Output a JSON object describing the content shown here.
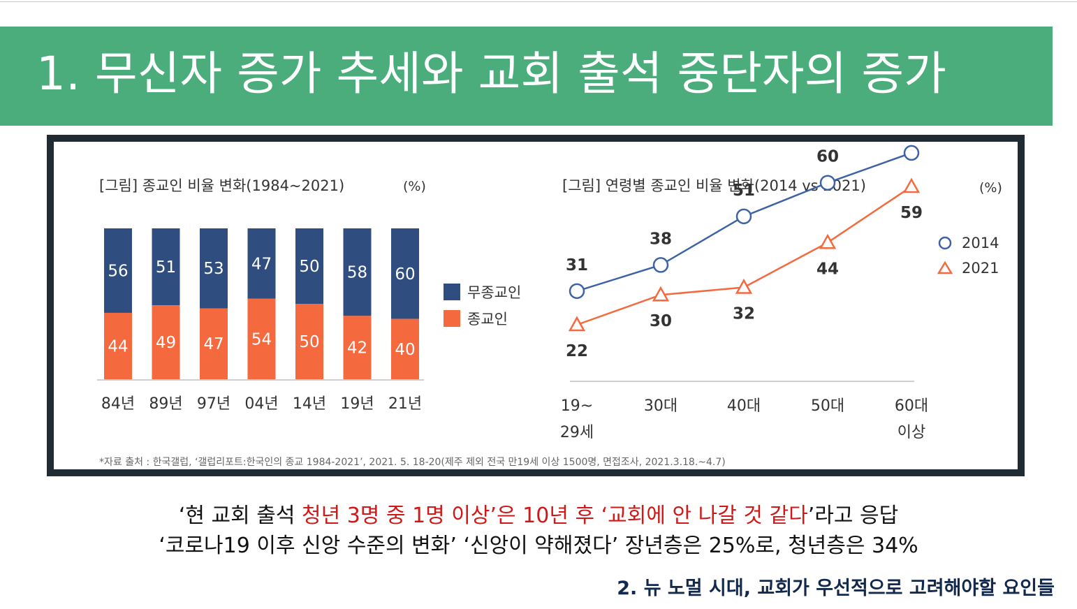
{
  "slide": {
    "title": "1. 무신자 증가 추세와 교회 출석 중단자의 증가",
    "caption1": {
      "pre": "‘현 교회 출석 ",
      "red1": "청년 3명 중 1명 이상",
      "mid": "’은 10년 후 ‘",
      "red2": "교회에 안 나갈 것 같다",
      "post": "’라고 응답"
    },
    "caption2": "‘코로나19 이후 신앙 수준의 변화’ ‘신앙이 약해졌다’ 장년층은 25%로, 청년층은 34%",
    "subtitle": "2. 뉴 노멀 시대, 교회가 우선적으로 고려해야할 요인들"
  },
  "figure": {
    "source_note": "*자료 출처 : 한국갤럽, ‘갤럽리포트:한국인의 종교 1984-2021’, 2021. 5. 18-20(제주 제외 전국 만19세 이상 1500명, 면접조사, 2021.3.18.~4.7)"
  },
  "chart_data": [
    {
      "type": "bar",
      "stacked": true,
      "title": "[그림] 종교인 비율 변화(1984~2021)",
      "unit": "(%)",
      "categories": [
        "84년",
        "89년",
        "97년",
        "04년",
        "14년",
        "19년",
        "21년"
      ],
      "series": [
        {
          "name": "종교인",
          "values": [
            44,
            49,
            47,
            54,
            50,
            42,
            40
          ],
          "color": "#f4693e"
        },
        {
          "name": "무종교인",
          "values": [
            56,
            51,
            53,
            47,
            50,
            58,
            60
          ],
          "color": "#2f4d7f"
        }
      ],
      "legend": "right",
      "grid": false
    },
    {
      "type": "line",
      "title": "[그림] 연령별 종교인 비율 변화(2014 vs 2021)",
      "unit": "(%)",
      "categories": [
        "19~\n29세",
        "30대",
        "40대",
        "50대",
        "60대\n이상"
      ],
      "series": [
        {
          "name": "2014",
          "values": [
            31,
            38,
            51,
            60,
            68
          ],
          "color": "#3e63a5",
          "marker": "circle"
        },
        {
          "name": "2021",
          "values": [
            22,
            30,
            32,
            44,
            59
          ],
          "color": "#f4693e",
          "marker": "triangle"
        }
      ],
      "legend": "top-right",
      "grid": false
    }
  ]
}
